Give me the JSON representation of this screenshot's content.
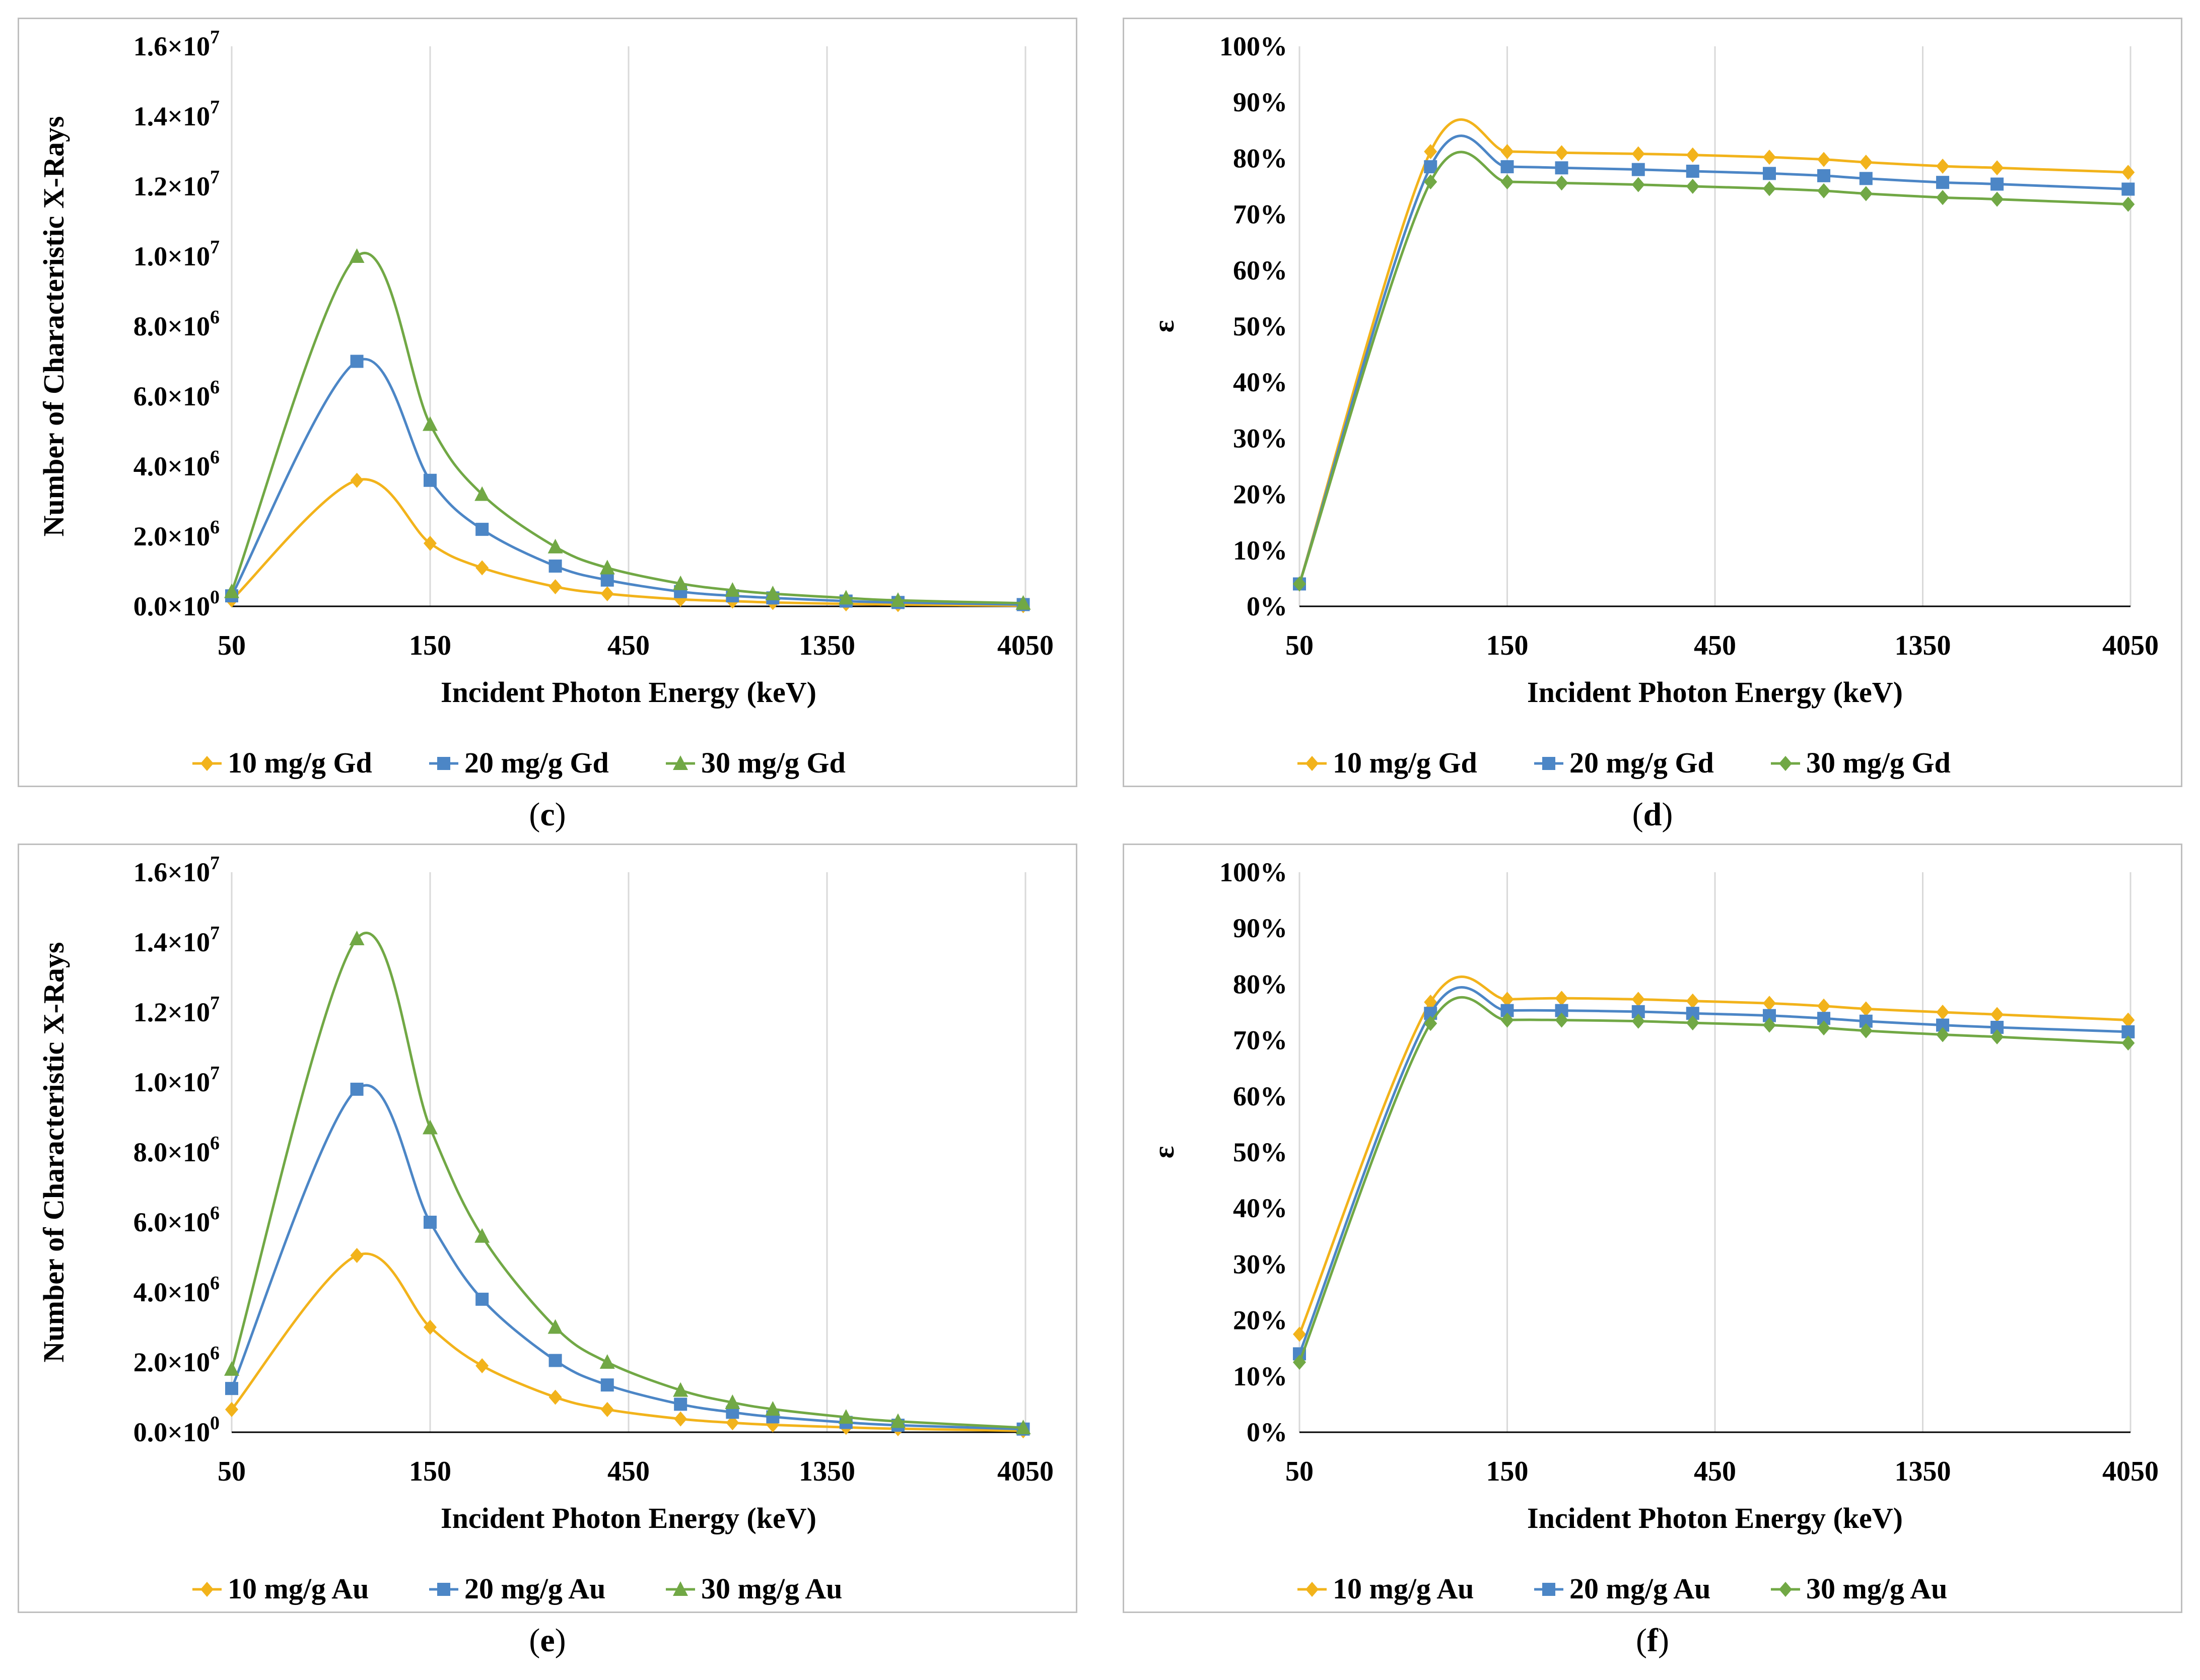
{
  "colors": {
    "series1": "#F2B31B",
    "series2": "#4C86C6",
    "series3": "#71A845",
    "grid": "#D9D9D9",
    "frame": "#BFBFBF"
  },
  "xtick_labels": [
    "50",
    "150",
    "450",
    "1350",
    "4050"
  ],
  "captions": [
    "c",
    "d",
    "e",
    "f"
  ],
  "chart_data": [
    {
      "panel": "c",
      "type": "line",
      "ylabel": "Number of Characteristic X-Rays",
      "xlabel": "Incident Photon Energy (keV)",
      "xscale": "log",
      "xlim": [
        50,
        4050
      ],
      "ylim": [
        0,
        16000000
      ],
      "yticks": [
        "0.0×10^0",
        "2.0×10^6",
        "4.0×10^6",
        "6.0×10^6",
        "8.0×10^6",
        "1.0×10^7",
        "1.2×10^7",
        "1.4×10^7",
        "1.6×10^7"
      ],
      "x": [
        50,
        100,
        150,
        200,
        300,
        400,
        600,
        800,
        1000,
        1500,
        2000,
        4000
      ],
      "series": [
        {
          "name": "10 mg/g Gd",
          "marker": "diamond",
          "values": [
            180000,
            3600000,
            1800000,
            1100000,
            560000,
            360000,
            200000,
            150000,
            110000,
            70000,
            50000,
            20000
          ]
        },
        {
          "name": "20 mg/g Gd",
          "marker": "square",
          "values": [
            300000,
            7000000,
            3600000,
            2200000,
            1150000,
            750000,
            420000,
            300000,
            240000,
            150000,
            110000,
            50000
          ]
        },
        {
          "name": "30 mg/g Gd",
          "marker": "triangle",
          "values": [
            420000,
            10000000,
            5200000,
            3200000,
            1700000,
            1100000,
            650000,
            460000,
            360000,
            240000,
            170000,
            90000
          ]
        }
      ],
      "legend_position": "bottom"
    },
    {
      "panel": "d",
      "type": "line",
      "ylabel": "ε",
      "xlabel": "Incident Photon Energy (keV)",
      "xscale": "log",
      "xlim": [
        50,
        4050
      ],
      "ylim": [
        0,
        100
      ],
      "yticks": [
        "0%",
        "10%",
        "20%",
        "30%",
        "40%",
        "50%",
        "60%",
        "70%",
        "80%",
        "90%",
        "100%"
      ],
      "x": [
        50,
        100,
        150,
        200,
        300,
        400,
        600,
        800,
        1000,
        1500,
        2000,
        4000
      ],
      "series": [
        {
          "name": "10 mg/g Gd",
          "marker": "diamond",
          "values": [
            4,
            81.2,
            81.2,
            81.0,
            80.8,
            80.6,
            80.2,
            79.8,
            79.3,
            78.6,
            78.3,
            77.5
          ]
        },
        {
          "name": "20 mg/g Gd",
          "marker": "square",
          "values": [
            4,
            78.5,
            78.5,
            78.3,
            78.0,
            77.7,
            77.3,
            76.9,
            76.4,
            75.7,
            75.4,
            74.5
          ]
        },
        {
          "name": "30 mg/g Gd",
          "marker": "diamond",
          "values": [
            4,
            75.8,
            75.8,
            75.6,
            75.3,
            75.0,
            74.6,
            74.2,
            73.7,
            73.0,
            72.7,
            71.8
          ]
        }
      ],
      "legend_position": "bottom"
    },
    {
      "panel": "e",
      "type": "line",
      "ylabel": "Number of Characteristic X-Rays",
      "xlabel": "Incident Photon Energy (keV)",
      "xscale": "log",
      "xlim": [
        50,
        4050
      ],
      "ylim": [
        0,
        16000000
      ],
      "yticks": [
        "0.0×10^0",
        "2.0×10^6",
        "4.0×10^6",
        "6.0×10^6",
        "8.0×10^6",
        "1.0×10^7",
        "1.2×10^7",
        "1.4×10^7",
        "1.6×10^7"
      ],
      "x": [
        50,
        100,
        150,
        200,
        300,
        400,
        600,
        800,
        1000,
        1500,
        2000,
        4000
      ],
      "series": [
        {
          "name": "10 mg/g Au",
          "marker": "diamond",
          "values": [
            650000,
            5050000,
            3000000,
            1900000,
            1000000,
            650000,
            380000,
            270000,
            210000,
            140000,
            100000,
            40000
          ]
        },
        {
          "name": "20 mg/g Au",
          "marker": "square",
          "values": [
            1250000,
            9800000,
            6000000,
            3800000,
            2050000,
            1350000,
            800000,
            570000,
            440000,
            280000,
            200000,
            90000
          ]
        },
        {
          "name": "30 mg/g Au",
          "marker": "triangle",
          "values": [
            1800000,
            14100000,
            8700000,
            5600000,
            3000000,
            2000000,
            1200000,
            850000,
            660000,
            430000,
            310000,
            130000
          ]
        }
      ],
      "legend_position": "bottom"
    },
    {
      "panel": "f",
      "type": "line",
      "ylabel": "ε",
      "xlabel": "Incident Photon Energy (keV)",
      "xscale": "log",
      "xlim": [
        50,
        4050
      ],
      "ylim": [
        0,
        100
      ],
      "yticks": [
        "0%",
        "10%",
        "20%",
        "30%",
        "40%",
        "50%",
        "60%",
        "70%",
        "80%",
        "90%",
        "100%"
      ],
      "x": [
        50,
        100,
        150,
        200,
        300,
        400,
        600,
        800,
        1000,
        1500,
        2000,
        4000
      ],
      "series": [
        {
          "name": "10 mg/g Au",
          "marker": "diamond",
          "values": [
            17.5,
            76.8,
            77.3,
            77.5,
            77.3,
            77.0,
            76.6,
            76.1,
            75.6,
            75.0,
            74.6,
            73.6
          ]
        },
        {
          "name": "20 mg/g Au",
          "marker": "square",
          "values": [
            14.0,
            74.8,
            75.3,
            75.3,
            75.1,
            74.8,
            74.4,
            73.9,
            73.4,
            72.7,
            72.3,
            71.5
          ]
        },
        {
          "name": "30 mg/g Au",
          "marker": "diamond",
          "values": [
            12.5,
            73.0,
            73.6,
            73.6,
            73.4,
            73.1,
            72.7,
            72.2,
            71.7,
            71.0,
            70.6,
            69.5
          ]
        }
      ],
      "legend_position": "bottom"
    }
  ]
}
